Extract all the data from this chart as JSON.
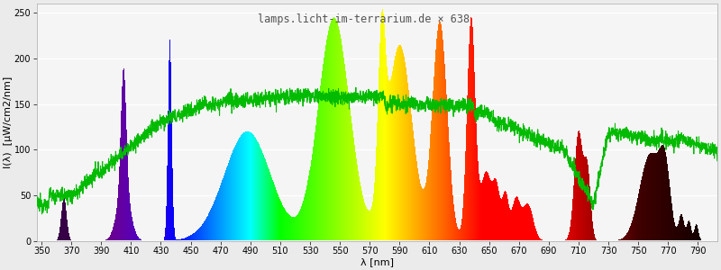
{
  "title": "lamps.licht-im-terrarium.de × 638",
  "xlabel": "λ [nm]",
  "ylabel": "I(λ)  [µW/cm2/nm]",
  "xlim": [
    347,
    803
  ],
  "ylim": [
    0,
    260
  ],
  "yticks": [
    0,
    50,
    100,
    150,
    200,
    250
  ],
  "xticks": [
    350,
    370,
    390,
    410,
    430,
    450,
    470,
    490,
    510,
    530,
    550,
    570,
    590,
    610,
    630,
    650,
    670,
    690,
    710,
    730,
    750,
    770,
    790
  ],
  "bg_color": "#ebebeb",
  "plot_bg_color": "#f5f5f5",
  "grid_color": "#ffffff",
  "title_color": "#555555",
  "title_fontsize": 8.5,
  "axis_label_fontsize": 8,
  "tick_fontsize": 7
}
